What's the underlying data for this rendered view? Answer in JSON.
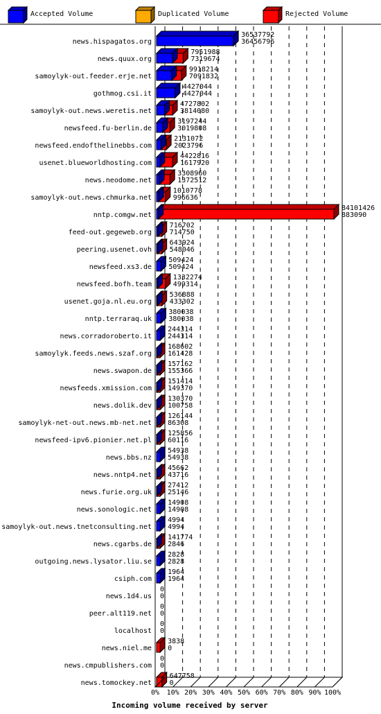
{
  "chart_data": {
    "type": "bar",
    "title": "",
    "xlabel": "Incoming volume received by server",
    "ylabel": "",
    "xlim": [
      0,
      100
    ],
    "xticks": [
      "0%",
      "10%",
      "20%",
      "30%",
      "40%",
      "50%",
      "60%",
      "70%",
      "80%",
      "90%",
      "100%"
    ],
    "legend": {
      "placement": "top",
      "entries": [
        {
          "name": "Accepted Volume",
          "color": "#0000ff"
        },
        {
          "name": "Duplicated Volume",
          "color": "#ffaa00"
        },
        {
          "name": "Rejected Volume",
          "color": "#ff0000"
        }
      ]
    },
    "colors": {
      "accepted": "#0000ff",
      "duplicated": "#ffaa00",
      "rejected": "#ff0000"
    },
    "rows": [
      {
        "server": "news.hispagatos.org",
        "total": "36537792",
        "accepted": "36456796",
        "total_pct": 43.4,
        "accepted_pct": 43.3
      },
      {
        "server": "news.quux.org",
        "total": "7951988",
        "accepted": "7319674",
        "total_pct": 15.0,
        "accepted_pct": 9.0
      },
      {
        "server": "samoylyk-out.feeder.erje.net",
        "total": "9918214",
        "accepted": "7091832",
        "total_pct": 14.0,
        "accepted_pct": 8.5
      },
      {
        "server": "gothmog.csi.it",
        "total": "4427044",
        "accepted": "4427044",
        "total_pct": 10.5,
        "accepted_pct": 10.5
      },
      {
        "server": "samoylyk-out.news.weretis.net",
        "total": "4727802",
        "accepted": "3814080",
        "total_pct": 9.0,
        "accepted_pct": 4.5
      },
      {
        "server": "newsfeed.fu-berlin.de",
        "total": "3197244",
        "accepted": "3019808",
        "total_pct": 7.5,
        "accepted_pct": 3.5
      },
      {
        "server": "newsfeed.endofthelinebbs.com",
        "total": "2131072",
        "accepted": "2023796",
        "total_pct": 5.5,
        "accepted_pct": 2.5
      },
      {
        "server": "usenet.blueworldhosting.com",
        "total": "4422816",
        "accepted": "1617920",
        "total_pct": 9.0,
        "accepted_pct": 1.9
      },
      {
        "server": "news.neodome.net",
        "total": "3308960",
        "accepted": "1372512",
        "total_pct": 7.5,
        "accepted_pct": 1.6
      },
      {
        "server": "samoylyk-out.news.chmurka.net",
        "total": "1010778",
        "accepted": "996636",
        "total_pct": 5.0,
        "accepted_pct": 1.2
      },
      {
        "server": "nntp.comgw.net",
        "total": "84101426",
        "accepted": "883090",
        "total_pct": 100.0,
        "accepted_pct": 1.0
      },
      {
        "server": "feed-out.gegeweb.org",
        "total": "716702",
        "accepted": "714750",
        "total_pct": 3.0,
        "accepted_pct": 0.8
      },
      {
        "server": "peering.usenet.ovh",
        "total": "643924",
        "accepted": "548046",
        "total_pct": 3.0,
        "accepted_pct": 0.7
      },
      {
        "server": "newsfeed.xs3.de",
        "total": "509424",
        "accepted": "509424",
        "total_pct": 2.5,
        "accepted_pct": 2.5
      },
      {
        "server": "newsfeed.bofh.team",
        "total": "1332274",
        "accepted": "499314",
        "total_pct": 5.0,
        "accepted_pct": 0.6
      },
      {
        "server": "usenet.goja.nl.eu.org",
        "total": "536888",
        "accepted": "433302",
        "total_pct": 3.0,
        "accepted_pct": 0.5
      },
      {
        "server": "nntp.terraraq.uk",
        "total": "380038",
        "accepted": "380038",
        "total_pct": 2.5,
        "accepted_pct": 2.5
      },
      {
        "server": "news.corradoroberto.it",
        "total": "244314",
        "accepted": "244314",
        "total_pct": 2.0,
        "accepted_pct": 2.0
      },
      {
        "server": "samoylyk.feeds.news.szaf.org",
        "total": "168602",
        "accepted": "161428",
        "total_pct": 2.0,
        "accepted_pct": 0.2
      },
      {
        "server": "news.swapon.de",
        "total": "157162",
        "accepted": "155366",
        "total_pct": 2.0,
        "accepted_pct": 0.2
      },
      {
        "server": "newsfeeds.xmission.com",
        "total": "151414",
        "accepted": "149370",
        "total_pct": 2.0,
        "accepted_pct": 0.2
      },
      {
        "server": "news.dolik.dev",
        "total": "130370",
        "accepted": "100758",
        "total_pct": 2.0,
        "accepted_pct": 0.1
      },
      {
        "server": "samoylyk-net-out.news.mb-net.net",
        "total": "126144",
        "accepted": "86308",
        "total_pct": 2.0,
        "accepted_pct": 0.1
      },
      {
        "server": "newsfeed-ipv6.pionier.net.pl",
        "total": "125856",
        "accepted": "60116",
        "total_pct": 2.0,
        "accepted_pct": 0.1
      },
      {
        "server": "news.bbs.nz",
        "total": "54938",
        "accepted": "54938",
        "total_pct": 2.0,
        "accepted_pct": 2.0
      },
      {
        "server": "news.nntp4.net",
        "total": "45662",
        "accepted": "43716",
        "total_pct": 2.0,
        "accepted_pct": 0.1
      },
      {
        "server": "news.furie.org.uk",
        "total": "27412",
        "accepted": "25146",
        "total_pct": 2.0,
        "accepted_pct": 0.1
      },
      {
        "server": "news.sonologic.net",
        "total": "14908",
        "accepted": "14908",
        "total_pct": 2.0,
        "accepted_pct": 2.0
      },
      {
        "server": "samoylyk-out.news.tnetconsulting.net",
        "total": "4994",
        "accepted": "4994",
        "total_pct": 2.0,
        "accepted_pct": 2.0
      },
      {
        "server": "news.cgarbs.de",
        "total": "141774",
        "accepted": "2846",
        "total_pct": 2.0,
        "accepted_pct": 0.1
      },
      {
        "server": "outgoing.news.lysator.liu.se",
        "total": "2828",
        "accepted": "2828",
        "total_pct": 2.0,
        "accepted_pct": 2.0
      },
      {
        "server": "csiph.com",
        "total": "1964",
        "accepted": "1964",
        "total_pct": 2.0,
        "accepted_pct": 2.0
      },
      {
        "server": "news.1d4.us",
        "total": "0",
        "accepted": "0",
        "total_pct": 0,
        "accepted_pct": 0
      },
      {
        "server": "peer.alt119.net",
        "total": "0",
        "accepted": "0",
        "total_pct": 0,
        "accepted_pct": 0
      },
      {
        "server": "localhost",
        "total": "0",
        "accepted": "0",
        "total_pct": 0,
        "accepted_pct": 0
      },
      {
        "server": "news.niel.me",
        "total": "3838",
        "accepted": "0",
        "total_pct": 2.0,
        "accepted_pct": 0
      },
      {
        "server": "news.cmpublishers.com",
        "total": "0",
        "accepted": "0",
        "total_pct": 0,
        "accepted_pct": 0
      },
      {
        "server": "news.tomockey.net",
        "total": "647758",
        "accepted": "0",
        "total_pct": 3.0,
        "accepted_pct": 0
      }
    ]
  }
}
